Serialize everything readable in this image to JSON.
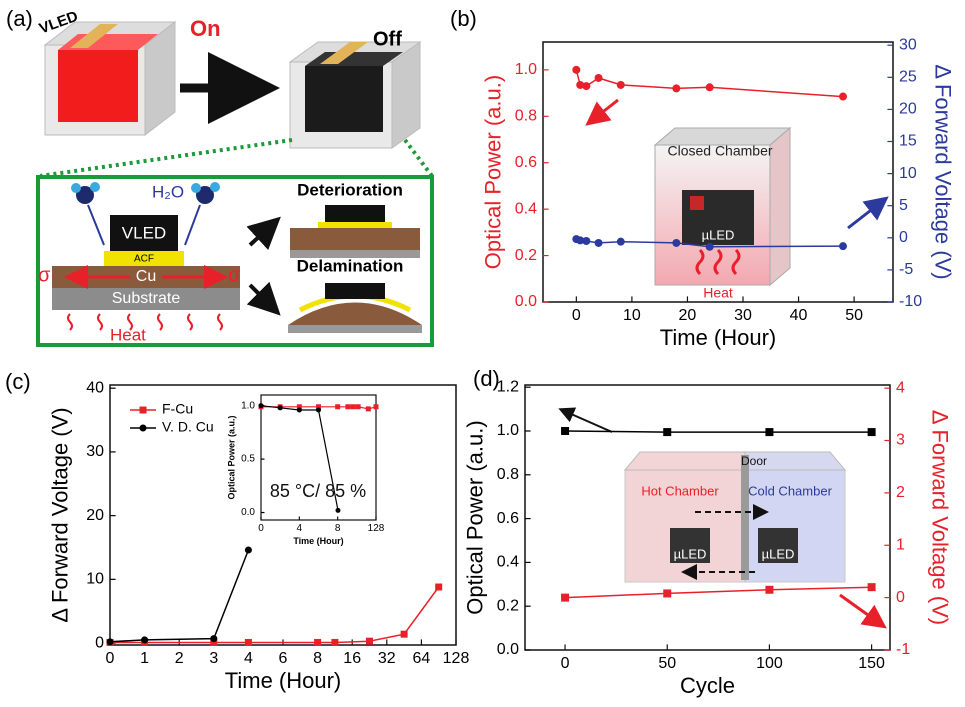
{
  "diagram": {
    "panel": "(a)",
    "device_label": "VLED",
    "on": "On",
    "off": "Off",
    "water": "H₂O",
    "chip": "VLED",
    "acf": "ACF",
    "cu": "Cu",
    "stress_left": "σ",
    "stress_right": "σ",
    "substrate": "Substrate",
    "heat": "Heat",
    "deterioration": "Deterioration",
    "delamination": "Delamination"
  },
  "chart_data": [
    {
      "type": "line",
      "panel": "(b)",
      "xlabel": "Time (Hour)",
      "ylabel": "Optical Power (a.u.)",
      "y2label": "Δ Forward Voltage (V)",
      "ycolor": "#e8202a",
      "y2color": "#2b3a9c",
      "xlim": [
        -6,
        57
      ],
      "xticks": [
        0,
        10,
        20,
        30,
        40,
        50
      ],
      "ylim": [
        0,
        1.12
      ],
      "yticks": [
        {
          "value": 0,
          "label": "0.0"
        },
        {
          "value": 0.2,
          "label": "0.2"
        },
        {
          "value": 0.4,
          "label": "0.4"
        },
        {
          "value": 0.6,
          "label": "0.6"
        },
        {
          "value": 0.8,
          "label": "0.8"
        },
        {
          "value": 1.0,
          "label": "1.0"
        }
      ],
      "y2lim": [
        -10,
        30.5
      ],
      "y2ticks": [
        -10,
        -5,
        0,
        5,
        10,
        15,
        20,
        25,
        30
      ],
      "annotations": [
        "Closed Chamber",
        "µLED",
        "Heat"
      ],
      "series": [
        {
          "color": "#e8202a",
          "marker": "circle",
          "x": [
            0,
            0.7,
            1.8,
            4,
            8,
            18,
            24,
            48
          ],
          "values": [
            1.0,
            0.935,
            0.93,
            0.965,
            0.935,
            0.92,
            0.925,
            0.885
          ]
        },
        {
          "color": "#2b3a9c",
          "marker": "circle",
          "axis": "y2",
          "x": [
            0,
            0.7,
            1.8,
            4,
            8,
            18,
            24,
            48
          ],
          "values": [
            -0.2,
            -0.4,
            -0.5,
            -0.8,
            -0.6,
            -0.8,
            -1.4,
            -1.3
          ]
        }
      ]
    },
    {
      "type": "line",
      "panel": "(c)",
      "xlabel": "Time (Hour)",
      "ylabel": "Δ Forward Voltage (V)",
      "ycolor": "#000000",
      "xlim": [
        0,
        128
      ],
      "xticks": [
        0,
        1,
        2,
        3,
        4,
        6,
        8,
        16,
        32,
        64,
        128
      ],
      "x_ticks_evenly_spaced": true,
      "ylim": [
        -0.3,
        40.5
      ],
      "yticks": [
        0,
        10,
        20,
        30,
        40
      ],
      "legend": "upper left",
      "series": [
        {
          "name": "F-Cu",
          "color": "#e8202a",
          "marker": "square",
          "x": [
            0,
            1,
            3,
            4,
            8,
            12,
            24,
            48,
            96
          ],
          "values": [
            0.1,
            0.1,
            0.1,
            0.1,
            0.1,
            0.1,
            0.3,
            1.4,
            8.8
          ]
        },
        {
          "name": "V. D. Cu",
          "color": "#000000",
          "marker": "circle",
          "x": [
            0,
            1,
            3,
            4
          ],
          "values": [
            0.2,
            0.5,
            0.7,
            14.6
          ]
        }
      ]
    },
    {
      "type": "line",
      "xlabel": "Time (Hour)",
      "ylabel": "Optical Power (a.u.)",
      "ycolor": "#000000",
      "xlim": [
        0,
        128
      ],
      "xticks": [
        0,
        4,
        8,
        128
      ],
      "x_ticks_evenly_spaced": true,
      "ylim": [
        -0.07,
        1.1
      ],
      "yticks": [
        {
          "value": 0,
          "label": "0.0"
        },
        {
          "value": 0.5,
          "label": "0.5"
        },
        {
          "value": 1.0,
          "label": "1.0"
        }
      ],
      "annotations": [
        "85 °C/ 85 %"
      ],
      "series": [
        {
          "color": "#e8202a",
          "marker": "square",
          "x": [
            0,
            2,
            4,
            6,
            8,
            40,
            56,
            72,
            104,
            128
          ],
          "values": [
            0.99,
            0.99,
            0.99,
            0.99,
            0.99,
            0.99,
            0.99,
            0.99,
            0.97,
            0.99
          ]
        },
        {
          "color": "#000000",
          "marker": "circle",
          "x": [
            0,
            2,
            4,
            6,
            9
          ],
          "values": [
            1.0,
            0.98,
            0.96,
            0.96,
            0.02
          ]
        }
      ]
    },
    {
      "type": "line",
      "panel": "(d)",
      "xlabel": "Cycle",
      "ylabel": "Optical Power (a.u.)",
      "y2label": "Δ Forward Voltage (V)",
      "ycolor": "#000000",
      "y2color": "#e8202a",
      "xlim": [
        -19.6,
        159
      ],
      "xticks": [
        0,
        50,
        100,
        150
      ],
      "ylim": [
        0,
        1.21
      ],
      "yticks": [
        {
          "value": 0,
          "label": "0.0"
        },
        {
          "value": 0.2,
          "label": "0.2"
        },
        {
          "value": 0.4,
          "label": "0.4"
        },
        {
          "value": 0.6,
          "label": "0.6"
        },
        {
          "value": 0.8,
          "label": "0.8"
        },
        {
          "value": 1.0,
          "label": "1.0"
        },
        {
          "value": 1.2,
          "label": "1.2"
        }
      ],
      "y2lim": [
        -1,
        4.06
      ],
      "y2ticks": [
        -1,
        0,
        1,
        2,
        3,
        4
      ],
      "annotations": [
        "Door",
        "Hot Chamber",
        "Cold Chamber",
        "µLED",
        "µLED"
      ],
      "series": [
        {
          "color": "#000000",
          "marker": "square",
          "x": [
            0,
            50,
            100,
            150
          ],
          "values": [
            1.0,
            0.995,
            0.995,
            0.995
          ]
        },
        {
          "color": "#e8202a",
          "marker": "square",
          "axis": "y2",
          "x": [
            0,
            50,
            100,
            150
          ],
          "values": [
            0.0,
            0.08,
            0.15,
            0.2
          ]
        }
      ]
    }
  ]
}
